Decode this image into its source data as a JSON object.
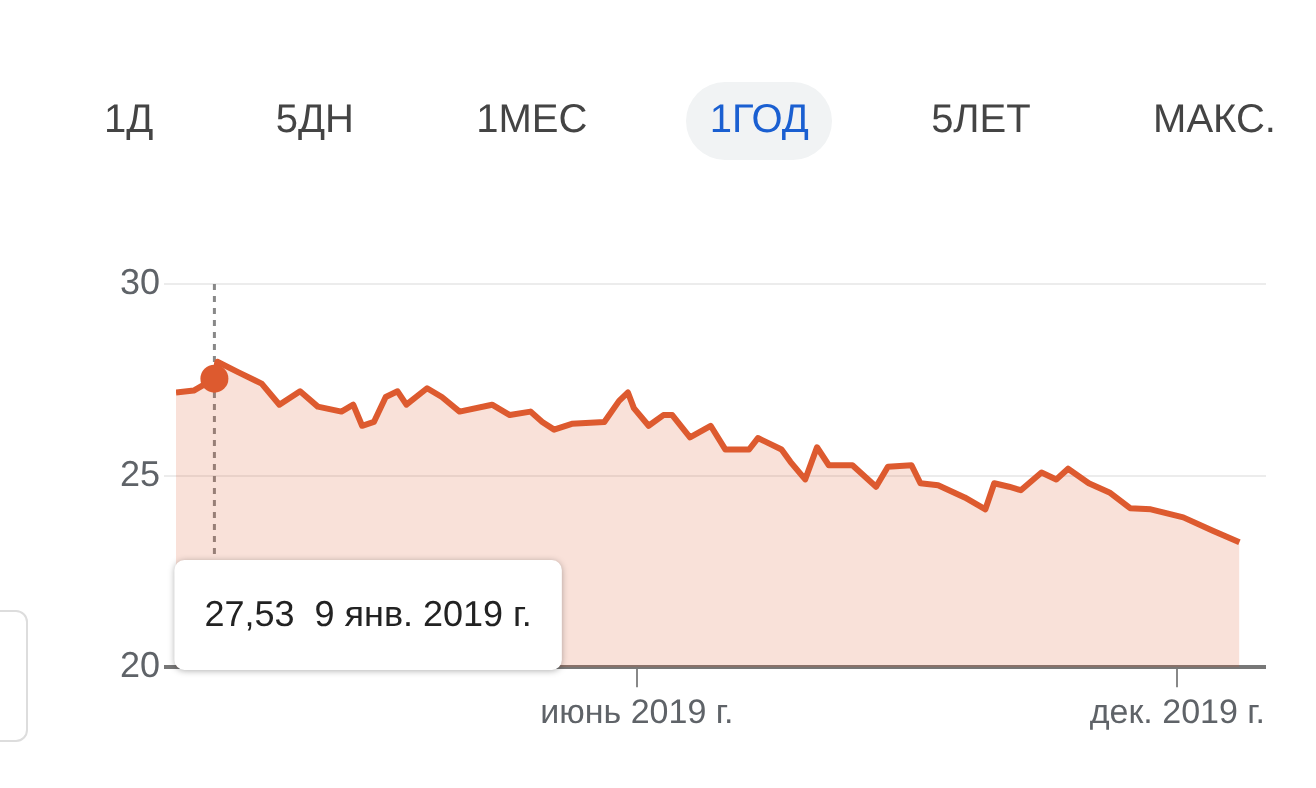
{
  "chart_data": {
    "type": "area",
    "x": [
      "2018-12-27",
      "2019-01-02",
      "2019-01-09",
      "2019-01-10",
      "2019-01-17",
      "2019-01-25",
      "2019-01-31",
      "2019-02-07",
      "2019-02-13",
      "2019-02-21",
      "2019-02-25",
      "2019-02-28",
      "2019-03-04",
      "2019-03-08",
      "2019-03-12",
      "2019-03-15",
      "2019-03-22",
      "2019-03-27",
      "2019-04-02",
      "2019-04-13",
      "2019-04-19",
      "2019-04-26",
      "2019-04-30",
      "2019-05-04",
      "2019-05-10",
      "2019-05-21",
      "2019-05-26",
      "2019-05-29",
      "2019-05-31",
      "2019-06-05",
      "2019-06-10",
      "2019-06-13",
      "2019-06-19",
      "2019-06-26",
      "2019-07-01",
      "2019-07-09",
      "2019-07-12",
      "2019-07-20",
      "2019-07-23",
      "2019-07-28",
      "2019-08-01",
      "2019-08-05",
      "2019-08-13",
      "2019-08-21",
      "2019-08-25",
      "2019-09-02",
      "2019-09-05",
      "2019-09-11",
      "2019-09-20",
      "2019-09-27",
      "2019-09-30",
      "2019-10-05",
      "2019-10-09",
      "2019-10-16",
      "2019-10-21",
      "2019-10-25",
      "2019-11-01",
      "2019-11-08",
      "2019-11-15",
      "2019-11-22",
      "2019-12-03",
      "2019-12-13",
      "2019-12-22"
    ],
    "series": [
      {
        "color": "#dd5a2f",
        "values": [
          27.17,
          27.22,
          27.53,
          27.97,
          27.7,
          27.4,
          26.85,
          27.2,
          26.8,
          26.67,
          26.85,
          26.3,
          26.4,
          27.05,
          27.2,
          26.85,
          27.28,
          27.05,
          26.67,
          26.85,
          26.58,
          26.67,
          26.4,
          26.2,
          26.35,
          26.4,
          26.95,
          27.17,
          26.76,
          26.3,
          26.58,
          26.58,
          26.0,
          26.3,
          25.68,
          25.68,
          25.98,
          25.68,
          25.36,
          24.9,
          25.74,
          25.27,
          25.27,
          24.71,
          25.23,
          25.27,
          24.8,
          24.75,
          24.43,
          24.12,
          24.8,
          24.71,
          24.62,
          25.08,
          24.9,
          25.18,
          24.8,
          24.56,
          24.15,
          24.12,
          23.91,
          23.56,
          23.26
        ]
      }
    ],
    "xlim": [
      "2018-12-27",
      "2019-12-31"
    ],
    "xticks": [
      {
        "value": "2019-06-01",
        "label": "июнь 2019 г."
      },
      {
        "value": "2019-12-01",
        "label": "дек. 2019 г."
      }
    ],
    "ylim": [
      20,
      30
    ],
    "yticks": [
      20,
      25,
      30
    ],
    "grid": "y",
    "ref_lines": [
      {
        "axis": "x",
        "value": "2019-01-09",
        "color": "#888888",
        "line_style": "dashed"
      }
    ],
    "annotations": [
      "1Д",
      "5ДН",
      "1МЕС",
      "1ГОД",
      "5ЛЕТ",
      "МАКС.",
      "27,53  9 янв. 2019 г."
    ]
  }
}
